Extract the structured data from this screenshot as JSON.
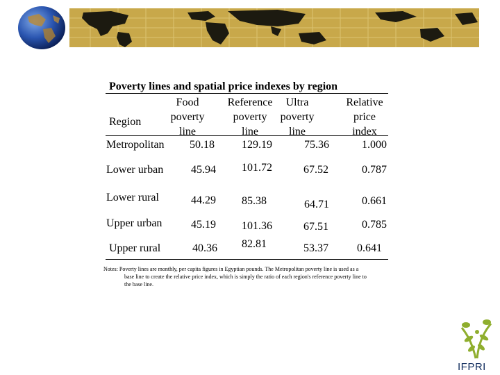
{
  "title": "Poverty lines and spatial price indexes by region",
  "headers": {
    "region": "Region",
    "food": [
      "Food",
      "poverty",
      "line"
    ],
    "reference": [
      "Reference",
      "poverty",
      "line"
    ],
    "ultra": [
      "Ultra",
      "poverty",
      "line"
    ],
    "relative": [
      "Relative",
      "price",
      "index"
    ]
  },
  "rows": [
    {
      "region": "Metropolitan",
      "food": "50.18",
      "reference": "129.19",
      "ultra": "75.36",
      "relative": "1.000"
    },
    {
      "region": "Lower urban",
      "food": "45.94",
      "reference": "101.72",
      "ultra": "67.52",
      "relative": "0.787"
    },
    {
      "region": "Lower rural",
      "food": "44.29",
      "reference": "85.38",
      "ultra": "64.71",
      "relative": "0.661"
    },
    {
      "region": "Upper urban",
      "food": "45.19",
      "reference": "101.36",
      "ultra": "67.51",
      "relative": "0.785"
    },
    {
      "region": "Upper rural",
      "food": "40.36",
      "reference": "82.81",
      "ultra": "53.37",
      "relative": "0.641"
    }
  ],
  "notes": {
    "line1": "Notes: Poverty lines are monthly, per capita figures in Egyptian pounds. The Metropolitan poverty line is used as a",
    "line2": "base line to create the relative price index, which is simply the ratio of each region's reference poverty line to",
    "line3": "the base line."
  },
  "logo": {
    "text": "IFPRI",
    "color": "#0e2a5c",
    "accent": "#8fae2e"
  },
  "banner_color": "#c8a84a"
}
